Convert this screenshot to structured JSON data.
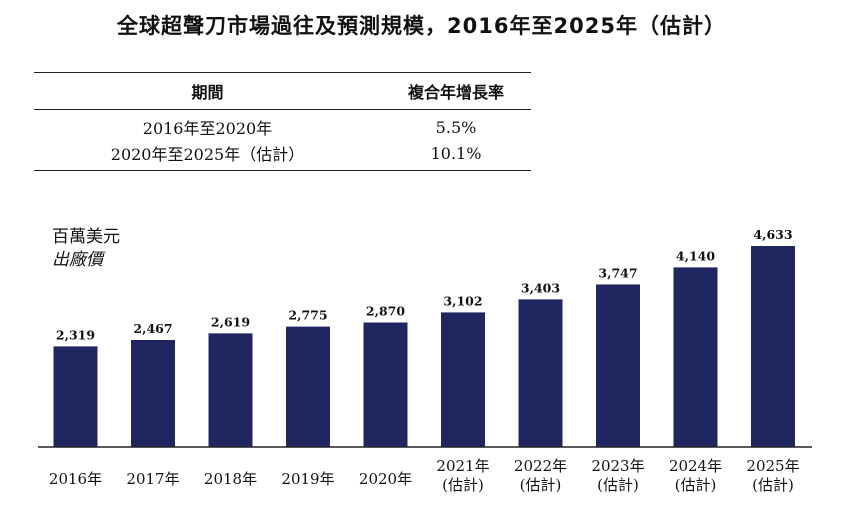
{
  "title": "全球超聲刀市場過往及預測規模，2016年至2025年（估計）",
  "cagr_table": {
    "headers": [
      "期間",
      "複合年增長率"
    ],
    "rows": [
      {
        "period": "2016年至2020年",
        "rate": "5.5%"
      },
      {
        "period": "2020年至2025年（估計）",
        "rate": "10.1%"
      }
    ]
  },
  "unit_label": "百萬美元",
  "unit_sub_label": "出廠價",
  "colors": {
    "bar": "#1f2660",
    "axis": "#222222"
  },
  "chart_data": {
    "type": "bar",
    "categories": [
      "2016年",
      "2017年",
      "2018年",
      "2019年",
      "2020年",
      "2021年\n(估計)",
      "2022年\n(估計)",
      "2023年\n(估計)",
      "2024年\n(估計)",
      "2025年\n(估計)"
    ],
    "values": [
      2319,
      2467,
      2619,
      2775,
      2870,
      3102,
      3403,
      3747,
      4140,
      4633
    ],
    "value_labels": [
      "2,319",
      "2,467",
      "2,619",
      "2,775",
      "2,870",
      "3,102",
      "3,403",
      "3,747",
      "4,140",
      "4,633"
    ],
    "title": "",
    "xlabel": "",
    "ylabel": "百萬美元",
    "ylim": [
      0,
      5000
    ],
    "grid": false,
    "legend": "none"
  }
}
